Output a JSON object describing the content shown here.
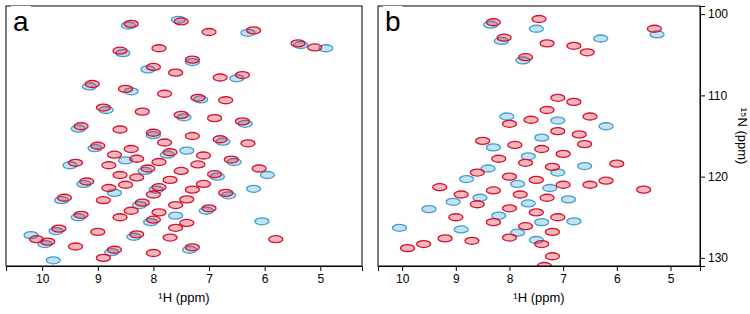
{
  "chart_data": [
    {
      "type": "scatter",
      "title": "a",
      "x_label": "¹H (ppm)",
      "xlim": [
        10.65,
        4.25
      ],
      "ylim": [
        131,
        99
      ],
      "xticks": [
        10,
        9,
        8,
        7,
        6,
        5
      ],
      "tick_labels": "x",
      "marker": "ellipse",
      "series": [
        {
          "color": "#3d9fd0",
          "x": [
            8.45,
            7.55,
            6.3,
            5.35,
            4.9,
            8.55,
            7.3,
            8.1,
            6.5,
            9.15,
            8.4,
            7.15,
            8.85,
            7.45,
            6.35,
            9.35,
            8.0,
            6.75,
            9.05,
            7.75,
            6.55,
            9.5,
            8.15,
            6.85,
            9.25,
            7.95,
            6.65,
            9.65,
            8.25,
            7.05,
            9.35,
            8.05,
            9.75,
            8.35,
            9.95,
            8.75,
            7.35,
            6.2,
            5.95,
            6.05,
            8.5,
            7.4,
            8.7,
            7.6,
            10.2,
            9.8
          ],
          "values": [
            101.4,
            100.7,
            102.3,
            103.8,
            104.2,
            104.8,
            105.9,
            106.8,
            107.9,
            108.9,
            109.5,
            110.5,
            111.8,
            112.7,
            113.5,
            114.1,
            114.9,
            115.7,
            116.5,
            117.3,
            118.2,
            118.6,
            119.3,
            120.0,
            120.9,
            121.6,
            122.3,
            122.9,
            123.5,
            124.2,
            125.0,
            125.6,
            126.7,
            127.4,
            128.3,
            129.3,
            129.0,
            121.5,
            119.8,
            125.5,
            118.0,
            116.8,
            122.0,
            124.8,
            127.2,
            130.3
          ]
        },
        {
          "color": "#d8102a",
          "x": [
            8.4,
            7.5,
            7.0,
            6.2,
            5.4,
            8.6,
            7.9,
            7.3,
            8.0,
            7.6,
            6.8,
            6.4,
            9.1,
            8.5,
            7.8,
            7.2,
            6.7,
            8.9,
            8.2,
            7.5,
            6.9,
            6.4,
            9.3,
            8.6,
            8.0,
            7.3,
            6.8,
            6.3,
            9.0,
            8.4,
            7.7,
            7.1,
            6.6,
            9.4,
            8.8,
            8.1,
            7.5,
            6.9,
            9.2,
            8.5,
            7.9,
            7.3,
            6.7,
            9.6,
            8.9,
            8.2,
            7.6,
            7.0,
            9.3,
            8.6,
            8.0,
            7.4,
            9.7,
            9.0,
            8.3,
            7.7,
            9.9,
            9.4,
            8.7,
            8.0,
            7.3,
            10.1,
            6.1,
            5.8,
            5.1,
            8.9,
            7.8,
            8.3,
            7.2,
            8.6,
            7.7,
            8.0,
            7.4,
            8.4,
            7.9,
            8.7,
            7.9,
            8.3,
            7.1,
            8.8,
            7.6
          ],
          "values": [
            101.2,
            100.9,
            102.2,
            102.0,
            103.6,
            104.5,
            104.2,
            105.6,
            106.5,
            107.2,
            107.8,
            107.5,
            108.6,
            109.2,
            109.8,
            110.3,
            110.6,
            111.5,
            112.0,
            112.4,
            112.8,
            113.2,
            113.8,
            114.2,
            114.6,
            115.0,
            115.4,
            115.9,
            116.2,
            116.6,
            117.0,
            117.4,
            117.9,
            118.3,
            118.6,
            119.0,
            119.3,
            119.7,
            120.6,
            121.0,
            121.3,
            121.6,
            122.0,
            122.6,
            122.9,
            123.2,
            123.5,
            123.9,
            124.7,
            125.0,
            125.3,
            125.7,
            126.4,
            126.8,
            127.1,
            127.5,
            128.0,
            128.6,
            129.0,
            129.4,
            128.7,
            127.7,
            119.0,
            127.7,
            104.1,
            130.0,
            115.8,
            117.8,
            118.5,
            119.8,
            120.4,
            122.2,
            122.8,
            124.2,
            124.4,
            117.3,
            118.2,
            120.1,
            120.9,
            121.4,
            126.3
          ]
        }
      ]
    },
    {
      "type": "scatter",
      "title": "b",
      "x_label": "¹H (ppm)",
      "y_label": "¹⁵N (ppm)",
      "xlim": [
        10.45,
        4.45
      ],
      "ylim": [
        131,
        99
      ],
      "xticks": [
        10,
        9,
        8,
        7,
        6,
        5
      ],
      "yticks": [
        100,
        110,
        120,
        130
      ],
      "marker": "ellipse",
      "series": [
        {
          "color": "#3d9fd0",
          "x": [
            8.35,
            7.5,
            8.15,
            6.3,
            5.25,
            7.75,
            8.05,
            7.4,
            8.3,
            7.65,
            7.1,
            8.4,
            7.85,
            7.25,
            8.55,
            7.65,
            8.2,
            7.4,
            7.85,
            7.5,
            9.5,
            9.05,
            8.8,
            6.8,
            6.6,
            6.9,
            10.05,
            7.1,
            6.2,
            8.9
          ],
          "values": [
            101.3,
            101.8,
            103.3,
            103.0,
            102.5,
            105.7,
            112.6,
            115.2,
            116.4,
            117.5,
            119.5,
            119.0,
            120.9,
            121.4,
            122.6,
            123.3,
            124.8,
            125.6,
            126.9,
            127.8,
            124.0,
            123.1,
            120.3,
            125.5,
            118.7,
            122.8,
            126.3,
            113.1,
            113.8,
            126.5
          ]
        },
        {
          "color": "#d8102a",
          "x": [
            8.3,
            7.45,
            8.1,
            7.3,
            6.8,
            7.7,
            6.55,
            5.3,
            7.1,
            7.3,
            6.8,
            6.5,
            7.6,
            8.0,
            7.1,
            6.7,
            8.5,
            7.9,
            7.4,
            7.0,
            6.6,
            8.2,
            7.7,
            7.2,
            8.6,
            8.0,
            7.5,
            7.0,
            8.3,
            7.8,
            7.3,
            8.6,
            8.0,
            7.5,
            7.1,
            8.3,
            7.7,
            7.2,
            8.0,
            7.4,
            7.2,
            7.35,
            9.9,
            9.6,
            9.2,
            9.0,
            8.9,
            9.3,
            6.5,
            6.2,
            8.7,
            6.0,
            5.5
          ],
          "values": [
            101.0,
            100.6,
            102.9,
            103.6,
            103.9,
            105.3,
            104.7,
            101.8,
            110.3,
            111.8,
            110.8,
            112.6,
            113.0,
            113.5,
            114.4,
            114.8,
            115.6,
            116.1,
            116.6,
            117.2,
            116.0,
            117.8,
            118.3,
            118.8,
            119.5,
            120.0,
            120.4,
            121.0,
            121.7,
            122.2,
            122.6,
            123.4,
            123.9,
            124.4,
            125.0,
            125.6,
            126.1,
            126.8,
            127.5,
            128.3,
            129.8,
            131.0,
            128.8,
            128.3,
            127.6,
            125.0,
            122.2,
            121.3,
            121.0,
            120.5,
            127.9,
            118.4,
            121.6
          ]
        }
      ]
    }
  ]
}
